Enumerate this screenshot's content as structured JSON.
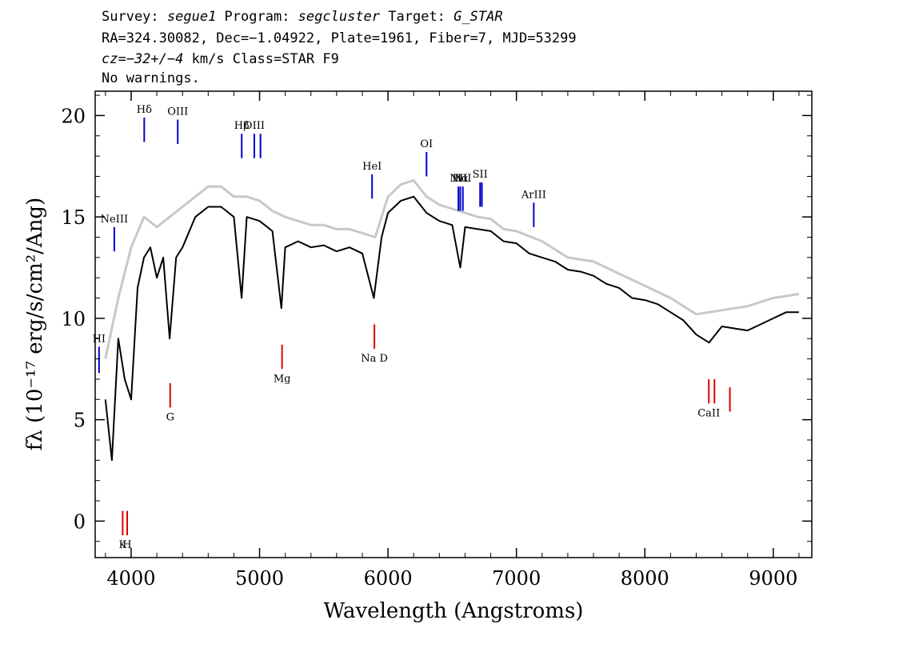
{
  "header": {
    "line1": {
      "survey_label": "Survey: ",
      "survey": "segue1",
      "program_label": " Program: ",
      "program": "segcluster",
      "target_label": " Target: ",
      "target": "G_STAR"
    },
    "line2": "RA=324.30082, Dec=−1.04922, Plate=1961, Fiber=7, MJD=53299",
    "line3": {
      "cz": "cz=−32+/−4",
      "rest": " km/s Class=STAR F9"
    },
    "line4": "No warnings."
  },
  "chart_data": {
    "type": "line",
    "xlabel": "Wavelength (Angstroms)",
    "ylabel": "fλ (10⁻¹⁷ erg/s/cm²/Ang)",
    "xlim": [
      3720,
      9300
    ],
    "ylim": [
      -1.8,
      21.2
    ],
    "x_ticks": [
      4000,
      5000,
      6000,
      7000,
      8000,
      9000
    ],
    "x_tick_labels": [
      "4000",
      "5000",
      "6000",
      "7000",
      "8000",
      "9000"
    ],
    "y_ticks": [
      0,
      5,
      10,
      15,
      20
    ],
    "y_tick_labels": [
      "0",
      "5",
      "10",
      "15",
      "20"
    ],
    "series": [
      {
        "role": "flux",
        "color": "#000000",
        "x": [
          3800,
          3850,
          3900,
          3950,
          4000,
          4050,
          4100,
          4150,
          4200,
          4250,
          4300,
          4350,
          4400,
          4500,
          4600,
          4700,
          4800,
          4860,
          4900,
          5000,
          5100,
          5170,
          5200,
          5300,
          5400,
          5500,
          5600,
          5700,
          5800,
          5890,
          5950,
          6000,
          6100,
          6200,
          6300,
          6400,
          6500,
          6563,
          6600,
          6700,
          6800,
          6900,
          7000,
          7100,
          7200,
          7300,
          7400,
          7500,
          7600,
          7700,
          7800,
          7900,
          8000,
          8100,
          8200,
          8300,
          8400,
          8500,
          8600,
          8700,
          8800,
          8900,
          9000,
          9100,
          9200
        ],
        "y": [
          6.0,
          3.0,
          9.0,
          7.0,
          6.0,
          11.5,
          13.0,
          13.5,
          12.0,
          13.0,
          9.0,
          13.0,
          13.5,
          15.0,
          15.5,
          15.5,
          15.0,
          11.0,
          15.0,
          14.8,
          14.3,
          10.5,
          13.5,
          13.8,
          13.5,
          13.6,
          13.3,
          13.5,
          13.2,
          11.0,
          14.0,
          15.2,
          15.8,
          16.0,
          15.2,
          14.8,
          14.6,
          12.5,
          14.5,
          14.4,
          14.3,
          13.8,
          13.7,
          13.2,
          13.0,
          12.8,
          12.4,
          12.3,
          12.1,
          11.7,
          11.5,
          11.0,
          10.9,
          10.7,
          10.3,
          9.9,
          9.2,
          8.8,
          9.6,
          9.5,
          9.4,
          9.7,
          10.0,
          10.3,
          10.3
        ]
      },
      {
        "role": "error",
        "color": "#c8c8c8",
        "x": [
          3800,
          3900,
          4000,
          4100,
          4200,
          4300,
          4400,
          4500,
          4600,
          4700,
          4800,
          4900,
          5000,
          5100,
          5200,
          5300,
          5400,
          5500,
          5600,
          5700,
          5800,
          5900,
          6000,
          6100,
          6200,
          6300,
          6400,
          6500,
          6600,
          6700,
          6800,
          6900,
          7000,
          7200,
          7400,
          7600,
          7800,
          8000,
          8200,
          8400,
          8600,
          8800,
          9000,
          9200
        ],
        "y": [
          8.0,
          11.0,
          13.5,
          15.0,
          14.5,
          15.0,
          15.5,
          16.0,
          16.5,
          16.5,
          16.0,
          16.0,
          15.8,
          15.3,
          15.0,
          14.8,
          14.6,
          14.6,
          14.4,
          14.4,
          14.2,
          14.0,
          16.0,
          16.6,
          16.8,
          16.0,
          15.6,
          15.4,
          15.2,
          15.0,
          14.9,
          14.4,
          14.3,
          13.8,
          13.0,
          12.8,
          12.2,
          11.6,
          11.0,
          10.2,
          10.4,
          10.6,
          11.0,
          11.2
        ]
      }
    ],
    "emission_lines": [
      {
        "label": "HI",
        "x": 3750,
        "y1": 7.3,
        "y2": 8.6
      },
      {
        "label": "NeIII",
        "x": 3869,
        "y1": 13.3,
        "y2": 14.5
      },
      {
        "label": "Hδ",
        "x": 4102,
        "y1": 18.7,
        "y2": 19.9
      },
      {
        "label": "OIII",
        "x": 4363,
        "y1": 18.6,
        "y2": 19.8
      },
      {
        "label": "Hβ",
        "x": 4861,
        "y1": 17.9,
        "y2": 19.1
      },
      {
        "label": "OIII",
        "x": 4959,
        "y1": 17.9,
        "y2": 19.1
      },
      {
        "label": "",
        "x": 5007,
        "y1": 17.9,
        "y2": 19.1
      },
      {
        "label": "HeI",
        "x": 5876,
        "y1": 15.9,
        "y2": 17.1
      },
      {
        "label": "OI",
        "x": 6300,
        "y1": 17.0,
        "y2": 18.2
      },
      {
        "label": "NII",
        "x": 6548,
        "y1": 15.3,
        "y2": 16.5
      },
      {
        "label": "Hα",
        "x": 6563,
        "y1": 15.3,
        "y2": 16.5
      },
      {
        "label": "NII",
        "x": 6583,
        "y1": 15.3,
        "y2": 16.5
      },
      {
        "label": "SII",
        "x": 6717,
        "y1": 15.5,
        "y2": 16.7
      },
      {
        "label": "",
        "x": 6731,
        "y1": 15.5,
        "y2": 16.7
      },
      {
        "label": "ArIII",
        "x": 7135,
        "y1": 14.5,
        "y2": 15.7
      }
    ],
    "absorption_lines": [
      {
        "label": "K",
        "x": 3934,
        "y1": -0.7,
        "y2": 0.5
      },
      {
        "label": "H",
        "x": 3969,
        "y1": -0.7,
        "y2": 0.5
      },
      {
        "label": "G",
        "x": 4304,
        "y1": 5.6,
        "y2": 6.8
      },
      {
        "label": "Mg",
        "x": 5175,
        "y1": 7.5,
        "y2": 8.7
      },
      {
        "label": "Na D",
        "x": 5894,
        "y1": 8.5,
        "y2": 9.7
      },
      {
        "label": "CaII",
        "x": 8498,
        "y1": 5.8,
        "y2": 7.0
      },
      {
        "label": "",
        "x": 8542,
        "y1": 5.8,
        "y2": 7.0
      },
      {
        "label": "",
        "x": 8662,
        "y1": 5.4,
        "y2": 6.6
      }
    ],
    "grid": false,
    "legend": "none"
  }
}
